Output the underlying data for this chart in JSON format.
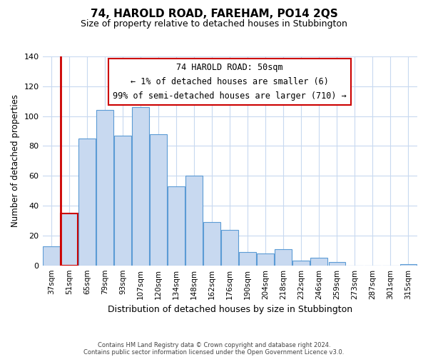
{
  "title": "74, HAROLD ROAD, FAREHAM, PO14 2QS",
  "subtitle": "Size of property relative to detached houses in Stubbington",
  "xlabel": "Distribution of detached houses by size in Stubbington",
  "ylabel": "Number of detached properties",
  "footer_line1": "Contains HM Land Registry data © Crown copyright and database right 2024.",
  "footer_line2": "Contains public sector information licensed under the Open Government Licence v3.0.",
  "bar_labels": [
    "37sqm",
    "51sqm",
    "65sqm",
    "79sqm",
    "93sqm",
    "107sqm",
    "120sqm",
    "134sqm",
    "148sqm",
    "162sqm",
    "176sqm",
    "190sqm",
    "204sqm",
    "218sqm",
    "232sqm",
    "246sqm",
    "259sqm",
    "273sqm",
    "287sqm",
    "301sqm",
    "315sqm"
  ],
  "bar_values": [
    13,
    35,
    85,
    104,
    87,
    106,
    88,
    53,
    60,
    29,
    24,
    9,
    8,
    11,
    3,
    5,
    2,
    0,
    0,
    0,
    1
  ],
  "highlight_bar_index": 1,
  "bar_color": "#c8d9f0",
  "bar_edge_color": "#5b9bd5",
  "highlight_color": "#cc0000",
  "ylim": [
    0,
    140
  ],
  "yticks": [
    0,
    20,
    40,
    60,
    80,
    100,
    120,
    140
  ],
  "annotation_title": "74 HAROLD ROAD: 50sqm",
  "annotation_line1": "← 1% of detached houses are smaller (6)",
  "annotation_line2": "99% of semi-detached houses are larger (710) →"
}
